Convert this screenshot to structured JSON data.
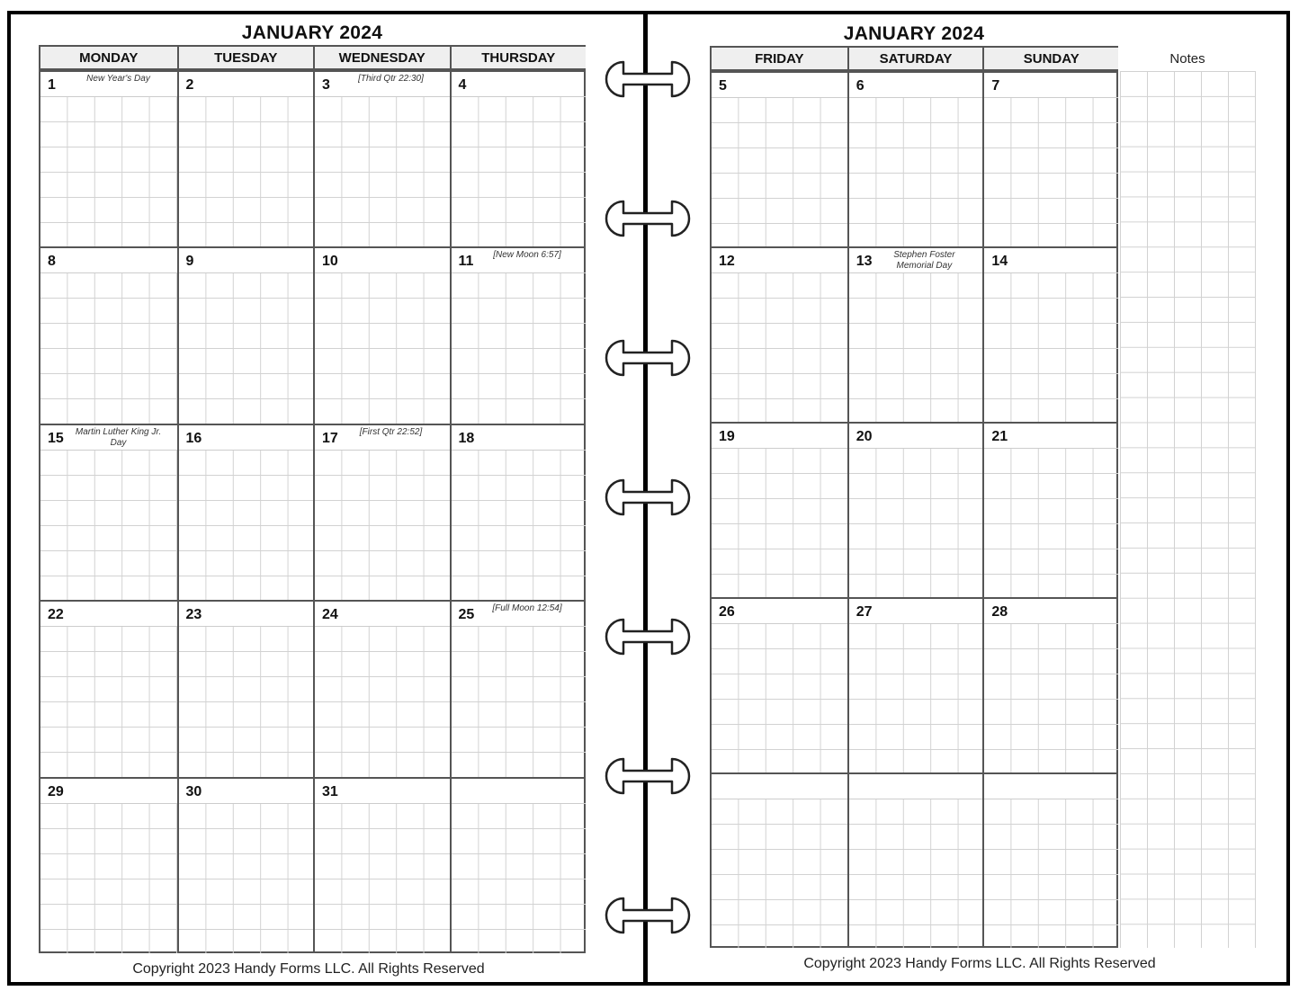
{
  "left_page": {
    "title": "JANUARY 2024",
    "weekdays": [
      "MONDAY",
      "TUESDAY",
      "WEDNESDAY",
      "THURSDAY"
    ],
    "weeks": [
      [
        {
          "day": "1",
          "note": "New Year's Day"
        },
        {
          "day": "2"
        },
        {
          "day": "3",
          "note": "[Third Qtr 22:30]"
        },
        {
          "day": "4"
        }
      ],
      [
        {
          "day": "8"
        },
        {
          "day": "9"
        },
        {
          "day": "10"
        },
        {
          "day": "11",
          "note": "[New Moon 6:57]"
        }
      ],
      [
        {
          "day": "15",
          "note": "Martin Luther King Jr. Day"
        },
        {
          "day": "16"
        },
        {
          "day": "17",
          "note": "[First Qtr 22:52]"
        },
        {
          "day": "18"
        }
      ],
      [
        {
          "day": "22"
        },
        {
          "day": "23"
        },
        {
          "day": "24"
        },
        {
          "day": "25",
          "note": "[Full Moon 12:54]"
        }
      ],
      [
        {
          "day": "29"
        },
        {
          "day": "30"
        },
        {
          "day": "31"
        },
        {
          "day": ""
        }
      ]
    ],
    "copyright": "Copyright 2023 Handy Forms LLC. All Rights Reserved"
  },
  "right_page": {
    "title": "JANUARY 2024",
    "weekdays": [
      "FRIDAY",
      "SATURDAY",
      "SUNDAY"
    ],
    "weeks": [
      [
        {
          "day": "5"
        },
        {
          "day": "6"
        },
        {
          "day": "7"
        }
      ],
      [
        {
          "day": "12"
        },
        {
          "day": "13",
          "note": "Stephen Foster Memorial Day"
        },
        {
          "day": "14"
        }
      ],
      [
        {
          "day": "19"
        },
        {
          "day": "20"
        },
        {
          "day": "21"
        }
      ],
      [
        {
          "day": "26"
        },
        {
          "day": "27"
        },
        {
          "day": "28"
        }
      ],
      [
        {
          "day": ""
        },
        {
          "day": ""
        },
        {
          "day": ""
        }
      ]
    ],
    "notes_label": "Notes",
    "copyright": "Copyright 2023 Handy Forms LLC. All Rights Reserved"
  },
  "binding": {
    "ring_count": 7,
    "icon": "binder-ring-icon"
  },
  "colors": {
    "header_bg": "#efefef",
    "border": "#555555",
    "grid": "#d2d2d2"
  }
}
